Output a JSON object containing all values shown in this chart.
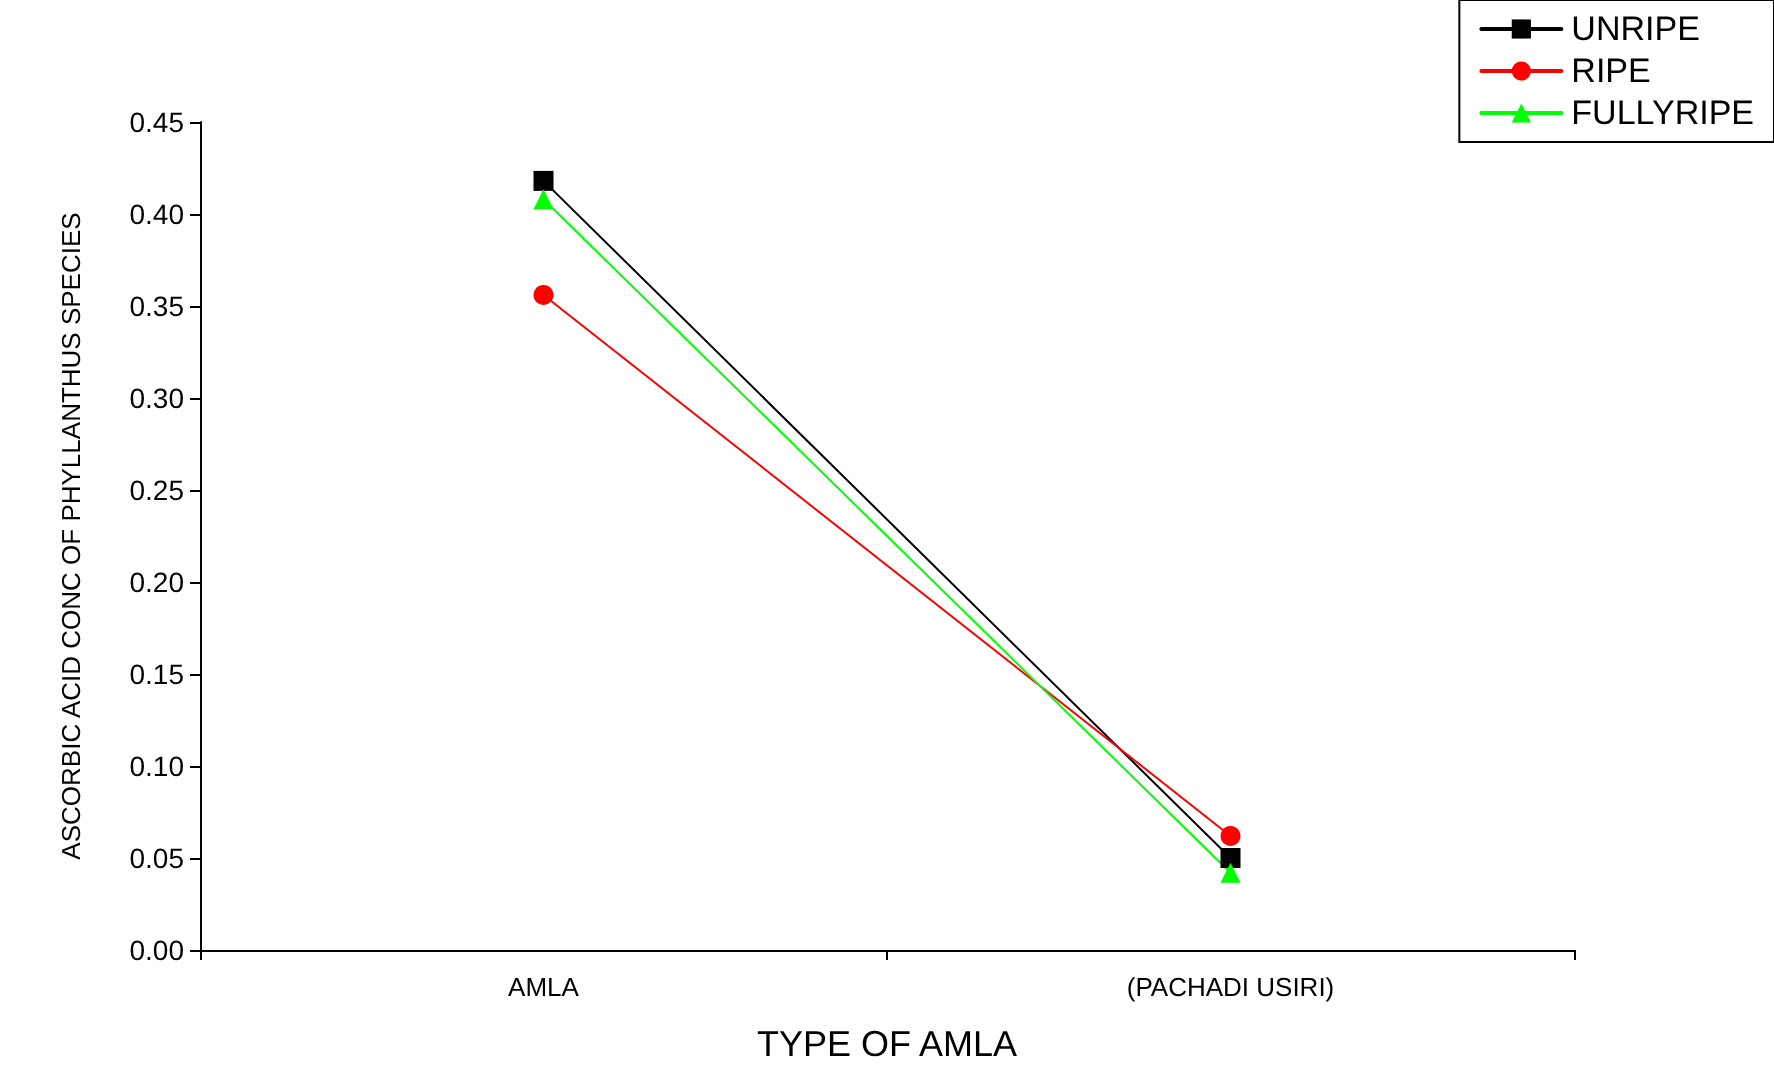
{
  "chart_data": {
    "type": "line",
    "xlabel": "TYPE OF AMLA",
    "ylabel": "ASCORBIC ACID CONC OF PHYLLANTHUS SPECIES",
    "categories": [
      "AMLA",
      "(PACHADI USIRI)"
    ],
    "series": [
      {
        "name": "UNRIPE",
        "color": "#000000",
        "marker": "square",
        "values": [
          0.418,
          0.05
        ]
      },
      {
        "name": "RIPE",
        "color": "#ff0000",
        "marker": "circle",
        "values": [
          0.356,
          0.062
        ]
      },
      {
        "name": "FULLYRIPE",
        "color": "#00ff00",
        "marker": "triangle",
        "values": [
          0.408,
          0.042
        ]
      }
    ],
    "ylim": [
      0,
      0.45
    ],
    "yticks": [
      {
        "value": 0,
        "label": "0.00"
      },
      {
        "value": 0.05,
        "label": "0.05"
      },
      {
        "value": 0.1,
        "label": "0.10"
      },
      {
        "value": 0.15,
        "label": "0.15"
      },
      {
        "value": 0.2,
        "label": "0.20"
      },
      {
        "value": 0.25,
        "label": "0.25"
      },
      {
        "value": 0.3,
        "label": "0.30"
      },
      {
        "value": 0.35,
        "label": "0.35"
      },
      {
        "value": 0.4,
        "label": "0.40"
      },
      {
        "value": 0.45,
        "label": "0.45"
      }
    ],
    "grid": false,
    "legend": "top right",
    "line_style": "solid"
  }
}
